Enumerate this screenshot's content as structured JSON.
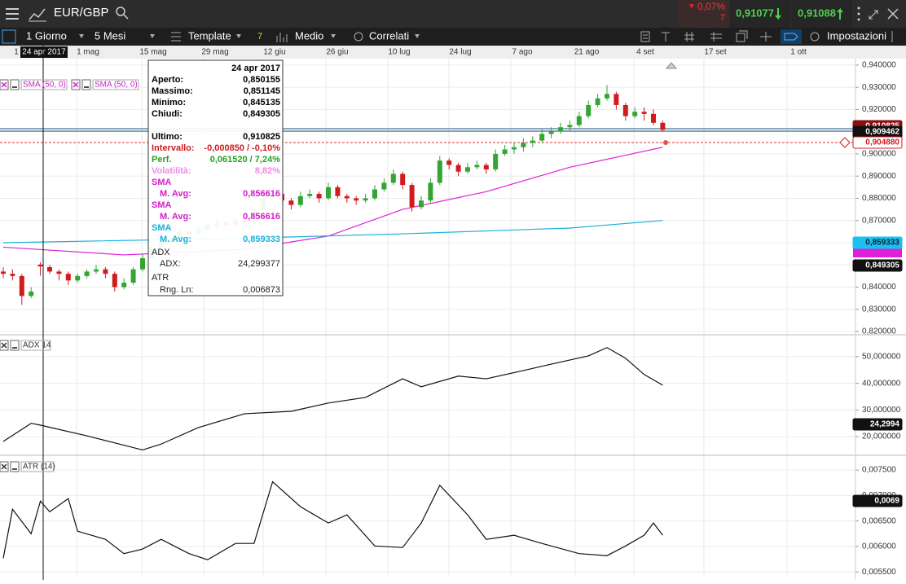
{
  "header": {
    "symbol": "EUR/GBP",
    "change": "0,07%",
    "change_sub": "7",
    "bid": "0,91077",
    "ask": "0,91088"
  },
  "toolbar": {
    "interval": "1 Giorno",
    "range": "5 Mesi",
    "template": "Template",
    "badge": "7",
    "style": "Medio",
    "related": "Correlati",
    "settings": "Impostazioni"
  },
  "date_axis": {
    "cursor": "24 apr 2017",
    "labels": [
      "1",
      "1 mag",
      "15 mag",
      "29 mag",
      "12 giu",
      "26 giu",
      "10 lug",
      "24 lug",
      "7 ago",
      "21 ago",
      "4 set",
      "17 set",
      "1 ott"
    ]
  },
  "price_panel": {
    "type": "candlestick",
    "up_color": "#33a532",
    "down_color": "#d01c1f",
    "candles": [
      [
        0.847,
        0.849,
        0.844,
        0.846
      ],
      [
        0.846,
        0.848,
        0.843,
        0.845
      ],
      [
        0.845,
        0.846,
        0.832,
        0.836
      ],
      [
        0.836,
        0.84,
        0.835,
        0.838
      ],
      [
        0.850155,
        0.851145,
        0.845135,
        0.849305
      ],
      [
        0.849,
        0.85,
        0.846,
        0.847
      ],
      [
        0.847,
        0.848,
        0.843,
        0.846
      ],
      [
        0.846,
        0.847,
        0.841,
        0.843
      ],
      [
        0.843,
        0.846,
        0.842,
        0.845
      ],
      [
        0.845,
        0.848,
        0.844,
        0.847
      ],
      [
        0.847,
        0.85,
        0.846,
        0.848
      ],
      [
        0.848,
        0.849,
        0.844,
        0.846
      ],
      [
        0.846,
        0.847,
        0.838,
        0.84
      ],
      [
        0.84,
        0.844,
        0.839,
        0.842
      ],
      [
        0.842,
        0.849,
        0.841,
        0.848
      ],
      [
        0.848,
        0.855,
        0.847,
        0.853
      ],
      [
        0.853,
        0.86,
        0.852,
        0.858
      ],
      [
        0.858,
        0.862,
        0.856,
        0.86
      ],
      [
        0.86,
        0.864,
        0.858,
        0.862
      ],
      [
        0.862,
        0.867,
        0.861,
        0.865
      ],
      [
        0.865,
        0.866,
        0.862,
        0.864
      ],
      [
        0.864,
        0.868,
        0.863,
        0.866
      ],
      [
        0.866,
        0.87,
        0.865,
        0.868
      ],
      [
        0.868,
        0.871,
        0.866,
        0.869
      ],
      [
        0.869,
        0.87,
        0.866,
        0.868
      ],
      [
        0.868,
        0.872,
        0.867,
        0.87
      ],
      [
        0.87,
        0.871,
        0.867,
        0.869
      ],
      [
        0.869,
        0.877,
        0.868,
        0.875
      ],
      [
        0.875,
        0.882,
        0.874,
        0.88
      ],
      [
        0.88,
        0.884,
        0.879,
        0.882
      ],
      [
        0.882,
        0.883,
        0.877,
        0.879
      ],
      [
        0.879,
        0.88,
        0.875,
        0.877
      ],
      [
        0.877,
        0.883,
        0.876,
        0.881
      ],
      [
        0.881,
        0.884,
        0.88,
        0.882
      ],
      [
        0.882,
        0.883,
        0.878,
        0.88
      ],
      [
        0.88,
        0.887,
        0.879,
        0.885
      ],
      [
        0.885,
        0.886,
        0.88,
        0.881
      ],
      [
        0.881,
        0.882,
        0.878,
        0.88
      ],
      [
        0.88,
        0.881,
        0.877,
        0.879
      ],
      [
        0.879,
        0.882,
        0.878,
        0.88
      ],
      [
        0.88,
        0.886,
        0.879,
        0.884
      ],
      [
        0.884,
        0.889,
        0.883,
        0.887
      ],
      [
        0.887,
        0.893,
        0.886,
        0.891
      ],
      [
        0.891,
        0.892,
        0.884,
        0.886
      ],
      [
        0.886,
        0.887,
        0.874,
        0.876
      ],
      [
        0.876,
        0.881,
        0.875,
        0.879
      ],
      [
        0.879,
        0.889,
        0.878,
        0.887
      ],
      [
        0.887,
        0.899,
        0.886,
        0.897
      ],
      [
        0.897,
        0.898,
        0.893,
        0.895
      ],
      [
        0.895,
        0.896,
        0.89,
        0.892
      ],
      [
        0.892,
        0.896,
        0.891,
        0.894
      ],
      [
        0.894,
        0.897,
        0.893,
        0.895
      ],
      [
        0.895,
        0.896,
        0.891,
        0.893
      ],
      [
        0.893,
        0.902,
        0.892,
        0.9
      ],
      [
        0.9,
        0.904,
        0.899,
        0.902
      ],
      [
        0.902,
        0.905,
        0.9,
        0.903
      ],
      [
        0.903,
        0.907,
        0.901,
        0.905
      ],
      [
        0.905,
        0.908,
        0.903,
        0.906
      ],
      [
        0.906,
        0.911,
        0.905,
        0.909
      ],
      [
        0.909,
        0.912,
        0.907,
        0.91
      ],
      [
        0.91,
        0.914,
        0.909,
        0.912
      ],
      [
        0.912,
        0.915,
        0.91,
        0.913
      ],
      [
        0.913,
        0.919,
        0.912,
        0.917
      ],
      [
        0.917,
        0.924,
        0.916,
        0.922
      ],
      [
        0.922,
        0.927,
        0.921,
        0.925
      ],
      [
        0.925,
        0.931,
        0.924,
        0.927
      ],
      [
        0.927,
        0.928,
        0.92,
        0.922
      ],
      [
        0.922,
        0.923,
        0.915,
        0.917
      ],
      [
        0.917,
        0.921,
        0.916,
        0.919
      ],
      [
        0.919,
        0.921,
        0.915,
        0.918
      ],
      [
        0.918,
        0.92,
        0.913,
        0.914
      ],
      [
        0.914,
        0.915,
        0.91,
        0.910825
      ]
    ],
    "lines": [
      {
        "name": "SMA (50, 0)",
        "color": "#e020d8",
        "x": [
          0,
          13,
          26,
          35,
          43,
          52,
          61,
          71
        ],
        "values": [
          0.858,
          0.8545,
          0.857,
          0.863,
          0.875,
          0.883,
          0.894,
          0.903
        ]
      },
      {
        "name": "SMA (50, 0)",
        "color": "#1ab0d8",
        "x": [
          0,
          26,
          43,
          61,
          71
        ],
        "values": [
          0.86,
          0.862,
          0.864,
          0.8666,
          0.87
        ]
      }
    ],
    "ylim": [
      0.8189,
      0.9429
    ],
    "yticks": [
      {
        "value": 0.94,
        "label": "0,940000"
      },
      {
        "value": 0.93,
        "label": "0,930000"
      },
      {
        "value": 0.92,
        "label": "0,920000"
      },
      {
        "value": 0.91,
        "label": "0,910000"
      },
      {
        "value": 0.9,
        "label": "0,900000"
      },
      {
        "value": 0.89,
        "label": "0,890000"
      },
      {
        "value": 0.88,
        "label": "0,880000"
      },
      {
        "value": 0.87,
        "label": "0,870000"
      },
      {
        "value": 0.86,
        "label": "0,860000"
      },
      {
        "value": 0.85,
        "label": "0,850000"
      },
      {
        "value": 0.84,
        "label": "0,840000"
      },
      {
        "value": 0.83,
        "label": "0,830000"
      },
      {
        "value": 0.82,
        "label": "0,820000"
      }
    ],
    "tags": [
      "0,910825",
      "0,909462",
      "0,904880",
      "0,859333",
      "0,849305"
    ]
  },
  "adx_panel": {
    "type": "line",
    "name": "ADX 14",
    "color": "#111111",
    "x": [
      0,
      3,
      4,
      9,
      15,
      17,
      21,
      26,
      31,
      35,
      39,
      43,
      45,
      49,
      52,
      56,
      59,
      63,
      65,
      67,
      69,
      71
    ],
    "values": [
      18.2,
      25,
      24.3,
      20.3,
      15,
      17.2,
      23.4,
      28.6,
      29.5,
      32.6,
      34.7,
      41.7,
      38.7,
      42.7,
      41.7,
      44.8,
      47.2,
      50.3,
      53.4,
      49.4,
      43.3,
      39.3
    ],
    "ylim": [
      13.3,
      57.3
    ],
    "yticks": [
      {
        "value": 50,
        "label": "50,000000"
      },
      {
        "value": 40,
        "label": "40,000000"
      },
      {
        "value": 30,
        "label": "30,000000"
      },
      {
        "value": 20,
        "label": "20,000000"
      }
    ],
    "tag": "24,2994"
  },
  "atr_panel": {
    "type": "line",
    "name": "ATR (14)",
    "color": "#111111",
    "x": [
      0,
      1,
      3,
      4,
      5,
      7,
      8,
      11,
      13,
      15,
      17,
      20,
      22,
      25,
      27,
      29,
      32,
      35,
      37,
      40,
      43,
      45,
      47,
      50,
      52,
      55,
      58,
      62,
      65,
      67,
      69,
      70,
      71
    ],
    "values": [
      0.00577,
      0.00673,
      0.00625,
      0.00689,
      0.00668,
      0.00694,
      0.0063,
      0.00614,
      0.00586,
      0.00595,
      0.00614,
      0.00586,
      0.00574,
      0.00606,
      0.00606,
      0.00727,
      0.00678,
      0.00646,
      0.00662,
      0.00601,
      0.00598,
      0.00646,
      0.0072,
      0.00662,
      0.00614,
      0.00622,
      0.00606,
      0.00586,
      0.00582,
      0.00601,
      0.00622,
      0.00646,
      0.00622
    ],
    "ylim": [
      0.00544,
      0.00774
    ],
    "yticks": [
      {
        "value": 0.0075,
        "label": "0,007500"
      },
      {
        "value": 0.007,
        "label": "0,007000"
      },
      {
        "value": 0.0065,
        "label": "0,006500"
      },
      {
        "value": 0.006,
        "label": "0,006000"
      },
      {
        "value": 0.0055,
        "label": "0,005500"
      }
    ],
    "tag": "0,0069"
  },
  "tooltip": {
    "date": "24 apr 2017",
    "rows": [
      {
        "label": "Aperto:",
        "value": "0,850155",
        "color": "#000000"
      },
      {
        "label": "Massimo:",
        "value": "0,851145",
        "color": "#000000"
      },
      {
        "label": "Minimo:",
        "value": "0,845135",
        "color": "#000000"
      },
      {
        "label": "Chiudi:",
        "value": "0,849305",
        "color": "#000000"
      },
      {
        "label": "Ultimo:",
        "value": "0,910825",
        "color": "#000000"
      },
      {
        "label": "Intervallo:",
        "value": "-0,000850 / -0,10%",
        "color": "#d01c1f"
      },
      {
        "label": "Perf.",
        "value": "0,061520 / 7,24%",
        "color": "#22a022"
      },
      {
        "label": "Volatilità:",
        "value": "8,82%",
        "color": "#f08ae8"
      },
      {
        "label": "SMA",
        "color": "#d020c8"
      },
      {
        "label": "M. Avg:",
        "value": "0,856616",
        "color": "#d020c8"
      },
      {
        "label": "SMA",
        "color": "#d020c8"
      },
      {
        "label": "M. Avg:",
        "value": "0,856616",
        "color": "#d020c8"
      },
      {
        "label": "SMA",
        "color": "#1ab0d8"
      },
      {
        "label": "M. Avg:",
        "value": "0,859333",
        "color": "#1ab0d8"
      },
      {
        "label": "ADX",
        "color": "#222222"
      },
      {
        "label": "ADX:",
        "value": "24,299377",
        "color": "#222222"
      },
      {
        "label": "ATR",
        "color": "#222222"
      },
      {
        "label": "Rng. Ln:",
        "value": "0,006873",
        "color": "#222222"
      }
    ]
  }
}
